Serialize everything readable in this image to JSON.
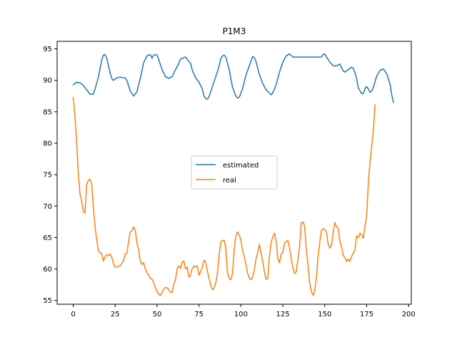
{
  "chart_data": {
    "type": "line",
    "title": "P1M3",
    "xlabel": "",
    "ylabel": "",
    "xlim": [
      -9.6,
      201.6
    ],
    "ylim": [
      54.4,
      96.2
    ],
    "x_ticks": [
      0,
      25,
      50,
      75,
      100,
      125,
      150,
      175,
      200
    ],
    "y_ticks": [
      55,
      60,
      65,
      70,
      75,
      80,
      85,
      90,
      95
    ],
    "grid": false,
    "legend_position": "center",
    "series": [
      {
        "name": "estimated",
        "color": "#1f77b4",
        "points": [
          [
            0,
            89.3
          ],
          [
            2,
            89.7
          ],
          [
            4,
            89.6
          ],
          [
            6,
            89.2
          ],
          [
            8,
            88.5
          ],
          [
            10,
            87.8
          ],
          [
            12,
            87.8
          ],
          [
            13,
            88.6
          ],
          [
            15,
            90.5
          ],
          [
            17,
            93.2
          ],
          [
            18,
            94.0
          ],
          [
            19,
            94.1
          ],
          [
            20,
            93.5
          ],
          [
            22,
            91.2
          ],
          [
            23,
            90.3
          ],
          [
            24,
            90.0
          ],
          [
            26,
            90.4
          ],
          [
            28,
            90.5
          ],
          [
            30,
            90.4
          ],
          [
            31,
            90.4
          ],
          [
            32,
            90.0
          ],
          [
            34,
            88.3
          ],
          [
            36,
            87.5
          ],
          [
            38,
            88.2
          ],
          [
            40,
            90.3
          ],
          [
            42,
            92.8
          ],
          [
            44,
            93.9
          ],
          [
            46,
            94.1
          ],
          [
            47,
            93.5
          ],
          [
            48,
            94.0
          ],
          [
            49,
            94.1
          ],
          [
            50,
            94.0
          ],
          [
            51,
            93.3
          ],
          [
            53,
            91.7
          ],
          [
            55,
            90.6
          ],
          [
            57,
            90.3
          ],
          [
            59,
            90.6
          ],
          [
            61,
            91.7
          ],
          [
            63,
            92.7
          ],
          [
            64,
            93.4
          ],
          [
            66,
            93.6
          ],
          [
            67,
            93.7
          ],
          [
            68,
            93.3
          ],
          [
            70,
            92.7
          ],
          [
            71,
            91.6
          ],
          [
            73,
            90.4
          ],
          [
            75,
            89.7
          ],
          [
            77,
            88.6
          ],
          [
            78,
            87.5
          ],
          [
            79,
            87.1
          ],
          [
            80,
            87.0
          ],
          [
            81,
            87.4
          ],
          [
            83,
            89.0
          ],
          [
            85,
            90.6
          ],
          [
            86,
            91.4
          ],
          [
            87,
            92.3
          ],
          [
            88,
            93.4
          ],
          [
            89,
            93.9
          ],
          [
            90,
            94.0
          ],
          [
            91,
            93.7
          ],
          [
            93,
            91.7
          ],
          [
            95,
            88.9
          ],
          [
            97,
            87.5
          ],
          [
            98,
            87.2
          ],
          [
            99,
            87.3
          ],
          [
            101,
            88.7
          ],
          [
            103,
            90.8
          ],
          [
            105,
            92.3
          ],
          [
            106,
            93.1
          ],
          [
            107,
            93.8
          ],
          [
            108,
            93.6
          ],
          [
            109,
            93.0
          ],
          [
            111,
            90.9
          ],
          [
            113,
            89.5
          ],
          [
            115,
            88.5
          ],
          [
            117,
            88.0
          ],
          [
            118,
            87.7
          ],
          [
            119,
            88.0
          ],
          [
            121,
            89.3
          ],
          [
            123,
            91.3
          ],
          [
            125,
            92.9
          ],
          [
            127,
            93.9
          ],
          [
            129,
            94.2
          ],
          [
            131,
            93.7
          ],
          [
            133,
            93.7
          ],
          [
            136,
            93.7
          ],
          [
            140,
            93.7
          ],
          [
            144,
            93.7
          ],
          [
            146,
            93.7
          ],
          [
            148,
            93.7
          ],
          [
            149,
            94.1
          ],
          [
            150,
            94.2
          ],
          [
            151,
            93.7
          ],
          [
            153,
            92.9
          ],
          [
            155,
            92.3
          ],
          [
            157,
            92.3
          ],
          [
            159,
            92.6
          ],
          [
            161,
            91.5
          ],
          [
            162,
            91.3
          ],
          [
            164,
            91.7
          ],
          [
            166,
            92.1
          ],
          [
            167,
            91.9
          ],
          [
            168,
            91.2
          ],
          [
            169,
            90.3
          ],
          [
            170,
            88.8
          ],
          [
            172,
            87.9
          ],
          [
            173,
            87.9
          ],
          [
            174,
            88.7
          ],
          [
            175,
            89.0
          ],
          [
            176,
            88.6
          ],
          [
            177,
            88.1
          ],
          [
            178,
            88.3
          ],
          [
            179,
            88.9
          ],
          [
            181,
            90.7
          ],
          [
            183,
            91.6
          ],
          [
            185,
            91.8
          ],
          [
            187,
            91.0
          ],
          [
            189,
            89.3
          ],
          [
            190,
            87.6
          ],
          [
            191,
            86.5
          ]
        ]
      },
      {
        "name": "real",
        "color": "#ff7f0e",
        "points": [
          [
            0,
            87.3
          ],
          [
            1,
            84.5
          ],
          [
            2,
            80.5
          ],
          [
            3,
            75.3
          ],
          [
            4,
            72.0
          ],
          [
            5,
            70.8
          ],
          [
            6,
            69.2
          ],
          [
            7,
            68.9
          ],
          [
            8,
            73.4
          ],
          [
            9,
            74.1
          ],
          [
            10,
            74.3
          ],
          [
            11,
            73.5
          ],
          [
            12,
            69.8
          ],
          [
            13,
            66.7
          ],
          [
            14,
            64.7
          ],
          [
            15,
            62.9
          ],
          [
            16,
            62.6
          ],
          [
            17,
            62.4
          ],
          [
            18,
            61.3
          ],
          [
            19,
            61.9
          ],
          [
            20,
            62.3
          ],
          [
            21,
            62.1
          ],
          [
            22,
            62.4
          ],
          [
            23,
            61.9
          ],
          [
            24,
            60.8
          ],
          [
            25,
            60.3
          ],
          [
            26,
            60.3
          ],
          [
            27,
            60.5
          ],
          [
            28,
            60.5
          ],
          [
            29,
            60.9
          ],
          [
            30,
            61.3
          ],
          [
            31,
            62.4
          ],
          [
            32,
            62.5
          ],
          [
            33,
            64.4
          ],
          [
            34,
            65.9
          ],
          [
            35,
            66.1
          ],
          [
            36,
            66.7
          ],
          [
            37,
            66.2
          ],
          [
            38,
            64.1
          ],
          [
            39,
            63.0
          ],
          [
            40,
            61.3
          ],
          [
            41,
            60.7
          ],
          [
            42,
            61.0
          ],
          [
            43,
            60.0
          ],
          [
            44,
            59.4
          ],
          [
            45,
            59.1
          ],
          [
            46,
            58.5
          ],
          [
            47,
            58.4
          ],
          [
            48,
            57.8
          ],
          [
            49,
            57.0
          ],
          [
            50,
            56.4
          ],
          [
            51,
            56.0
          ],
          [
            52,
            55.8
          ],
          [
            53,
            56.3
          ],
          [
            54,
            56.8
          ],
          [
            55,
            57.1
          ],
          [
            56,
            57.0
          ],
          [
            57,
            56.7
          ],
          [
            58,
            56.3
          ],
          [
            59,
            56.3
          ],
          [
            60,
            57.6
          ],
          [
            61,
            58.3
          ],
          [
            62,
            60.1
          ],
          [
            63,
            60.5
          ],
          [
            64,
            60.1
          ],
          [
            65,
            61.1
          ],
          [
            66,
            61.3
          ],
          [
            67,
            60.0
          ],
          [
            68,
            60.3
          ],
          [
            69,
            58.7
          ],
          [
            70,
            59.0
          ],
          [
            71,
            60.1
          ],
          [
            72,
            60.5
          ],
          [
            73,
            60.3
          ],
          [
            74,
            60.5
          ],
          [
            75,
            59.0
          ],
          [
            76,
            59.6
          ],
          [
            77,
            60.3
          ],
          [
            78,
            61.4
          ],
          [
            79,
            61.1
          ],
          [
            80,
            59.7
          ],
          [
            81,
            58.5
          ],
          [
            82,
            57.5
          ],
          [
            83,
            56.7
          ],
          [
            84,
            57.0
          ],
          [
            85,
            57.8
          ],
          [
            86,
            59.3
          ],
          [
            87,
            62.2
          ],
          [
            88,
            64.3
          ],
          [
            89,
            64.5
          ],
          [
            90,
            64.6
          ],
          [
            91,
            63.3
          ],
          [
            92,
            59.4
          ],
          [
            93,
            58.5
          ],
          [
            94,
            58.3
          ],
          [
            95,
            59.3
          ],
          [
            96,
            63.1
          ],
          [
            97,
            65.3
          ],
          [
            98,
            65.9
          ],
          [
            99,
            65.4
          ],
          [
            100,
            64.6
          ],
          [
            101,
            62.9
          ],
          [
            102,
            62.0
          ],
          [
            103,
            60.7
          ],
          [
            104,
            59.3
          ],
          [
            105,
            58.6
          ],
          [
            106,
            58.3
          ],
          [
            107,
            58.7
          ],
          [
            108,
            59.9
          ],
          [
            109,
            61.6
          ],
          [
            110,
            62.6
          ],
          [
            111,
            63.9
          ],
          [
            112,
            62.5
          ],
          [
            113,
            61.2
          ],
          [
            114,
            59.6
          ],
          [
            115,
            58.4
          ],
          [
            116,
            58.5
          ],
          [
            117,
            62.1
          ],
          [
            118,
            64.2
          ],
          [
            119,
            65.1
          ],
          [
            120,
            65.7
          ],
          [
            121,
            64.5
          ],
          [
            122,
            61.6
          ],
          [
            123,
            61.0
          ],
          [
            124,
            62.4
          ],
          [
            125,
            62.6
          ],
          [
            126,
            64.1
          ],
          [
            127,
            64.4
          ],
          [
            128,
            64.5
          ],
          [
            129,
            63.3
          ],
          [
            130,
            61.7
          ],
          [
            131,
            60.2
          ],
          [
            132,
            59.3
          ],
          [
            133,
            59.6
          ],
          [
            134,
            61.5
          ],
          [
            135,
            63.6
          ],
          [
            136,
            67.3
          ],
          [
            137,
            67.5
          ],
          [
            138,
            66.8
          ],
          [
            139,
            63.1
          ],
          [
            140,
            60.6
          ],
          [
            141,
            57.8
          ],
          [
            142,
            56.5
          ],
          [
            143,
            55.8
          ],
          [
            144,
            56.5
          ],
          [
            145,
            58.6
          ],
          [
            146,
            62.0
          ],
          [
            147,
            64.2
          ],
          [
            148,
            66.1
          ],
          [
            149,
            66.4
          ],
          [
            150,
            66.3
          ],
          [
            151,
            65.9
          ],
          [
            152,
            64.0
          ],
          [
            153,
            63.3
          ],
          [
            154,
            63.8
          ],
          [
            155,
            65.7
          ],
          [
            156,
            67.4
          ],
          [
            157,
            66.7
          ],
          [
            158,
            66.5
          ],
          [
            159,
            64.5
          ],
          [
            160,
            63.5
          ],
          [
            161,
            62.2
          ],
          [
            162,
            61.8
          ],
          [
            163,
            61.2
          ],
          [
            164,
            61.6
          ],
          [
            165,
            61.2
          ],
          [
            166,
            62.0
          ],
          [
            167,
            62.5
          ],
          [
            168,
            63.0
          ],
          [
            169,
            65.3
          ],
          [
            170,
            65.0
          ],
          [
            171,
            65.7
          ],
          [
            172,
            65.4
          ],
          [
            173,
            64.9
          ],
          [
            174,
            66.8
          ],
          [
            175,
            68.5
          ],
          [
            176,
            73.7
          ],
          [
            177,
            77.0
          ],
          [
            178,
            79.7
          ],
          [
            179,
            82.0
          ],
          [
            180,
            86.1
          ]
        ]
      }
    ]
  }
}
